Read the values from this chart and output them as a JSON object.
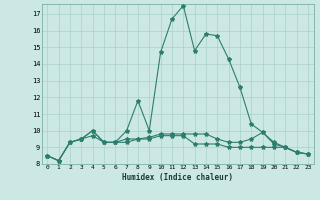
{
  "xlabel": "Humidex (Indice chaleur)",
  "x": [
    0,
    1,
    2,
    3,
    4,
    5,
    6,
    7,
    8,
    9,
    10,
    11,
    12,
    13,
    14,
    15,
    16,
    17,
    18,
    19,
    20,
    21,
    22,
    23
  ],
  "line1": [
    8.5,
    8.2,
    9.3,
    9.5,
    10.0,
    9.3,
    9.3,
    10.0,
    11.8,
    10.0,
    14.7,
    16.7,
    17.5,
    14.8,
    15.8,
    15.7,
    14.3,
    12.6,
    10.4,
    9.9,
    9.3,
    9.0,
    8.7,
    8.6
  ],
  "line2": [
    8.5,
    8.2,
    9.3,
    9.5,
    10.0,
    9.3,
    9.3,
    9.5,
    9.5,
    9.5,
    9.7,
    9.7,
    9.7,
    9.2,
    9.2,
    9.2,
    9.0,
    9.0,
    9.0,
    9.0,
    9.0,
    9.0,
    8.7,
    8.6
  ],
  "line3": [
    8.5,
    8.2,
    9.3,
    9.5,
    9.7,
    9.3,
    9.3,
    9.3,
    9.5,
    9.6,
    9.8,
    9.8,
    9.8,
    9.8,
    9.8,
    9.5,
    9.3,
    9.3,
    9.5,
    9.9,
    9.2,
    9.0,
    8.7,
    8.6
  ],
  "line_color": "#2d7d6e",
  "bg_color": "#cce8e4",
  "grid_color": "#aad0cb",
  "ylim": [
    8,
    17.6
  ],
  "yticks": [
    8,
    9,
    10,
    11,
    12,
    13,
    14,
    15,
    16,
    17
  ],
  "xlim": [
    -0.5,
    23.5
  ]
}
